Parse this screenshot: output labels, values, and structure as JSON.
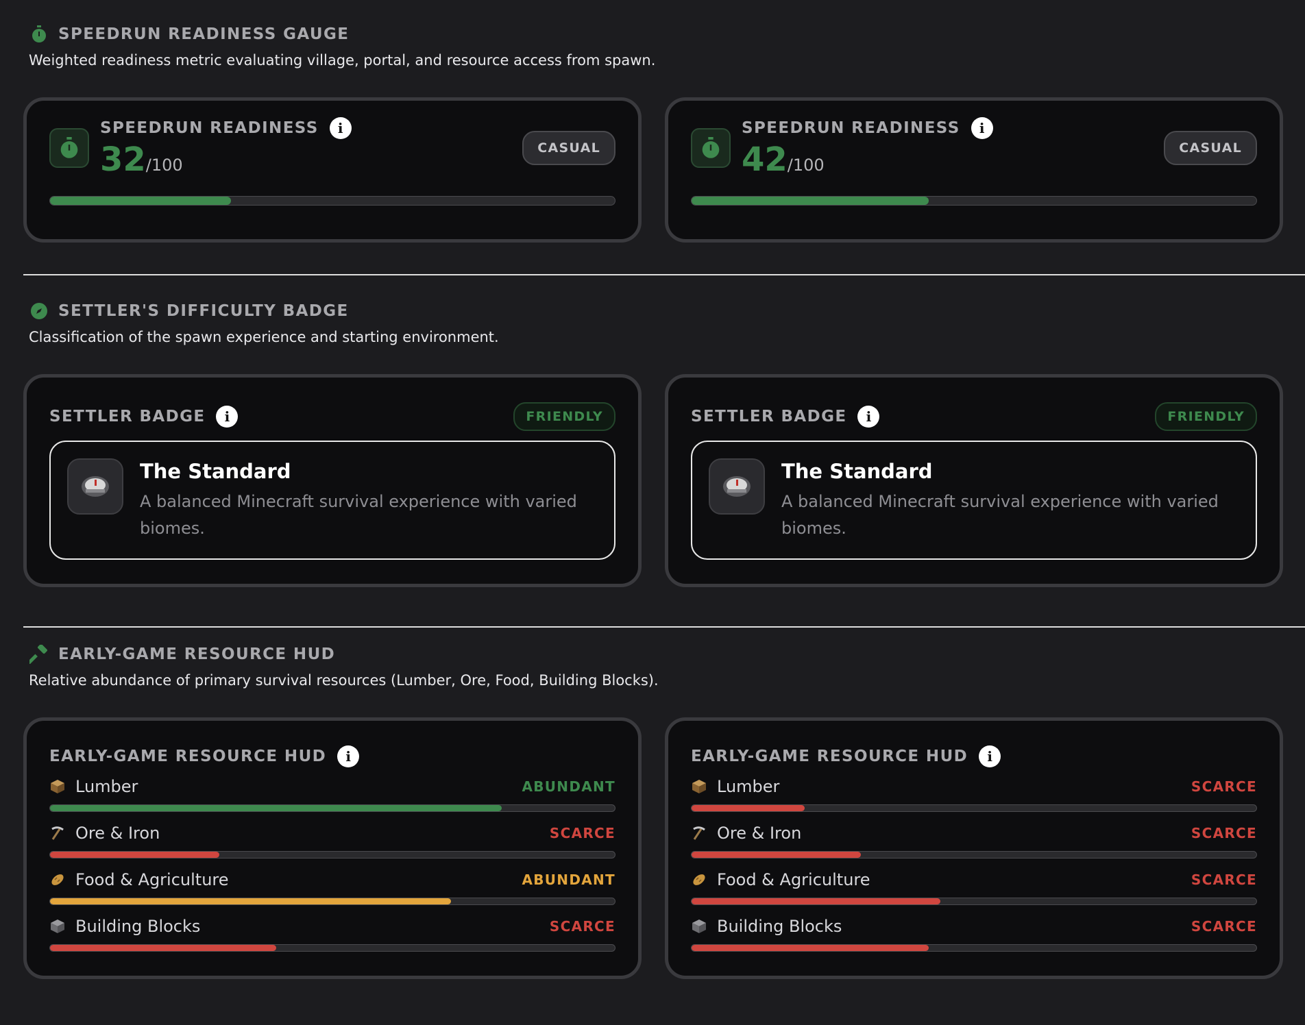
{
  "speedrun": {
    "title": "SPEEDRUN READINESS GAUGE",
    "description": "Weighted readiness metric evaluating village, portal, and resource access from spawn.",
    "cards": [
      {
        "label": "SPEEDRUN READINESS",
        "score": "32",
        "max": "/100",
        "badge": "CASUAL",
        "progress": 0.32
      },
      {
        "label": "SPEEDRUN READINESS",
        "score": "42",
        "max": "/100",
        "badge": "CASUAL",
        "progress": 0.42
      }
    ]
  },
  "settler": {
    "title": "SETTLER'S DIFFICULTY BADGE",
    "description": "Classification of the spawn experience and starting environment.",
    "cards": [
      {
        "label": "SETTLER BADGE",
        "badge": "FRIENDLY",
        "name": "The Standard",
        "text": "A balanced Minecraft survival experience with varied biomes."
      },
      {
        "label": "SETTLER BADGE",
        "badge": "FRIENDLY",
        "name": "The Standard",
        "text": "A balanced Minecraft survival experience with varied biomes."
      }
    ]
  },
  "resources": {
    "title": "EARLY-GAME RESOURCE HUD",
    "description": "Relative abundance of primary survival resources (Lumber, Ore, Food, Building Blocks).",
    "cards": [
      {
        "label": "EARLY-GAME RESOURCE HUD",
        "items": [
          {
            "name": "Lumber",
            "icon": "wood-block-icon",
            "status": "ABUNDANT",
            "color": "#3e8a4e",
            "level": 0.8
          },
          {
            "name": "Ore & Iron",
            "icon": "pickaxe-icon",
            "status": "SCARCE",
            "color": "#d0463f",
            "level": 0.3
          },
          {
            "name": "Food & Agriculture",
            "icon": "bread-icon",
            "status": "ABUNDANT",
            "color": "#e3a53c",
            "level": 0.71
          },
          {
            "name": "Building Blocks",
            "icon": "stone-block-icon",
            "status": "SCARCE",
            "color": "#d0463f",
            "level": 0.4
          }
        ]
      },
      {
        "label": "EARLY-GAME RESOURCE HUD",
        "items": [
          {
            "name": "Lumber",
            "icon": "wood-block-icon",
            "status": "SCARCE",
            "color": "#d0463f",
            "level": 0.2
          },
          {
            "name": "Ore & Iron",
            "icon": "pickaxe-icon",
            "status": "SCARCE",
            "color": "#d0463f",
            "level": 0.3
          },
          {
            "name": "Food & Agriculture",
            "icon": "bread-icon",
            "status": "SCARCE",
            "color": "#d0463f",
            "level": 0.44
          },
          {
            "name": "Building Blocks",
            "icon": "stone-block-icon",
            "status": "SCARCE",
            "color": "#d0463f",
            "level": 0.42
          }
        ]
      }
    ]
  },
  "colors": {
    "accent": "#3e8a4e",
    "scarce": "#d0463f",
    "abundant_food": "#e3a53c"
  }
}
